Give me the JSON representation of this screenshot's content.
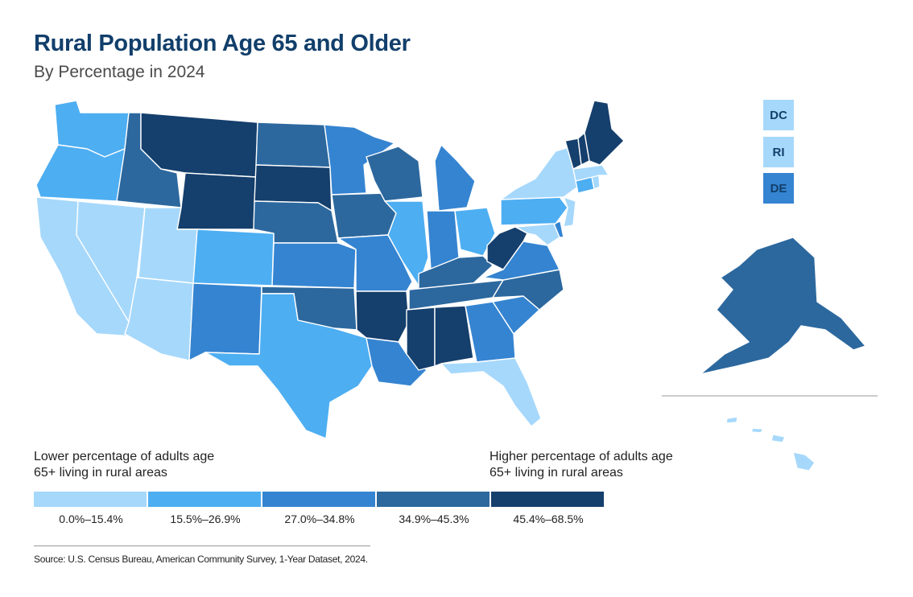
{
  "title": "Rural Population Age 65 and Older",
  "subtitle": "By Percentage in 2024",
  "colors": {
    "c1": "#a6d8fb",
    "c2": "#4daef2",
    "c3": "#3584d1",
    "c4": "#2c689e",
    "c5": "#153f6c",
    "background": "#ffffff",
    "title": "#123f6b"
  },
  "legend": {
    "low_label": "Lower percentage of adults age 65+ living in rural areas",
    "high_label": "Higher percentage of adults age 65+ living in rural areas",
    "ranges": [
      "0.0%–15.4%",
      "15.5%–26.9%",
      "27.0%–34.8%",
      "34.9%–45.3%",
      "45.4%–68.5%"
    ]
  },
  "small_states": [
    {
      "abbr": "DC",
      "class": 1
    },
    {
      "abbr": "RI",
      "class": 1
    },
    {
      "abbr": "DE",
      "class": 3
    }
  ],
  "state_classes": {
    "WA": 2,
    "OR": 2,
    "CA": 1,
    "NV": 1,
    "ID": 4,
    "MT": 5,
    "WY": 5,
    "UT": 1,
    "AZ": 1,
    "CO": 2,
    "NM": 3,
    "ND": 4,
    "SD": 5,
    "NE": 4,
    "KS": 3,
    "OK": 4,
    "TX": 2,
    "MN": 3,
    "IA": 4,
    "MO": 3,
    "AR": 5,
    "LA": 3,
    "WI": 4,
    "IL": 2,
    "MI": 3,
    "IN": 3,
    "OH": 2,
    "KY": 4,
    "TN": 4,
    "MS": 5,
    "AL": 5,
    "GA": 3,
    "FL": 1,
    "SC": 3,
    "NC": 4,
    "VA": 3,
    "WV": 5,
    "MD": 1,
    "DE": 3,
    "NJ": 1,
    "PA": 2,
    "NY": 1,
    "CT": 2,
    "RI": 1,
    "MA": 1,
    "VT": 5,
    "NH": 5,
    "ME": 5,
    "AK": 4,
    "HI": 1,
    "DC": 1
  },
  "source": "Source: U.S. Census Bureau, American Community Survey, 1-Year Dataset, 2024."
}
